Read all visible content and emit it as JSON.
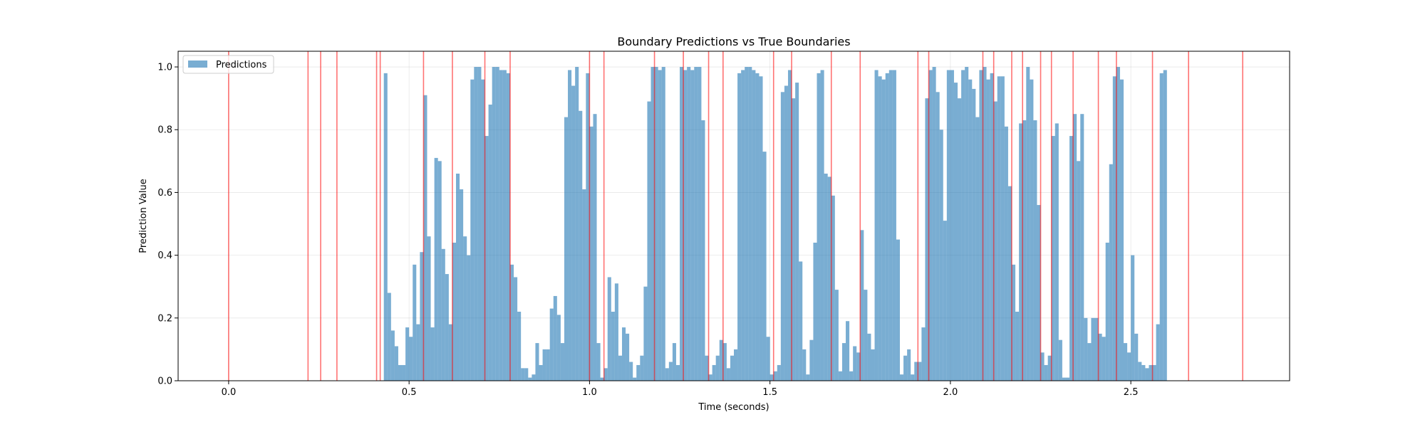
{
  "chart_data": {
    "type": "bar",
    "title": "Boundary Predictions vs True Boundaries",
    "xlabel": "Time (seconds)",
    "ylabel": "Prediction Value",
    "xlim": [
      -0.14,
      2.94
    ],
    "ylim": [
      0.0,
      1.05
    ],
    "xticks": [
      0.0,
      0.5,
      1.0,
      1.5,
      2.0,
      2.5
    ],
    "xtick_labels": [
      "0.0",
      "0.5",
      "1.0",
      "1.5",
      "2.0",
      "2.5"
    ],
    "yticks": [
      0.0,
      0.2,
      0.4,
      0.6,
      0.8,
      1.0
    ],
    "ytick_labels": [
      "0.0",
      "0.2",
      "0.4",
      "0.6",
      "0.8",
      "1.0"
    ],
    "grid": true,
    "legend": {
      "position": "upper-left",
      "entries": [
        "Predictions"
      ]
    },
    "series": [
      {
        "name": "Predictions",
        "color": "#1f77b4",
        "x_start": 0.43,
        "bin_width": 0.01,
        "values": [
          0.98,
          0.28,
          0.16,
          0.11,
          0.05,
          0.05,
          0.17,
          0.14,
          0.37,
          0.18,
          0.41,
          0.91,
          0.46,
          0.17,
          0.71,
          0.7,
          0.42,
          0.34,
          0.18,
          0.44,
          0.66,
          0.61,
          0.46,
          0.4,
          0.96,
          1.0,
          1.0,
          0.96,
          0.78,
          0.88,
          1.0,
          1.0,
          0.99,
          0.99,
          0.98,
          0.37,
          0.33,
          0.22,
          0.04,
          0.04,
          0.01,
          0.02,
          0.12,
          0.05,
          0.1,
          0.1,
          0.23,
          0.27,
          0.21,
          0.12,
          0.84,
          0.99,
          0.94,
          1.0,
          0.86,
          0.61,
          0.98,
          0.81,
          0.85,
          0.12,
          0.01,
          0.04,
          0.33,
          0.22,
          0.31,
          0.08,
          0.17,
          0.15,
          0.06,
          0.01,
          0.05,
          0.08,
          0.3,
          0.89,
          1.0,
          1.0,
          0.99,
          1.0,
          0.04,
          0.06,
          0.12,
          0.05,
          1.0,
          0.99,
          1.0,
          0.99,
          1.0,
          1.0,
          0.83,
          0.08,
          0.02,
          0.05,
          0.08,
          0.13,
          0.12,
          0.04,
          0.08,
          0.1,
          0.98,
          0.99,
          1.0,
          1.0,
          0.99,
          0.98,
          0.97,
          0.73,
          0.14,
          0.02,
          0.03,
          0.05,
          0.92,
          0.94,
          0.99,
          0.9,
          0.95,
          0.38,
          0.1,
          0.02,
          0.13,
          0.44,
          0.98,
          0.99,
          0.66,
          0.65,
          0.59,
          0.29,
          0.03,
          0.12,
          0.19,
          0.03,
          0.11,
          0.09,
          0.48,
          0.29,
          0.15,
          0.1,
          0.99,
          0.97,
          0.96,
          0.98,
          0.99,
          0.99,
          0.45,
          0.02,
          0.08,
          0.1,
          0.02,
          0.06,
          0.06,
          0.17,
          0.9,
          0.99,
          1.0,
          0.92,
          0.8,
          0.51,
          0.99,
          0.99,
          0.95,
          0.9,
          0.99,
          1.0,
          0.96,
          0.93,
          0.84,
          0.99,
          1.0,
          0.96,
          0.98,
          0.89,
          0.97,
          0.97,
          0.81,
          0.62,
          0.37,
          0.22,
          0.82,
          0.83,
          1.0,
          0.96,
          0.83,
          0.56,
          0.09,
          0.05,
          0.08,
          0.78,
          0.82,
          0.13,
          0.01,
          0.01,
          0.78,
          0.85,
          0.7,
          0.85,
          0.2,
          0.12,
          0.2,
          0.2,
          0.15,
          0.14,
          0.44,
          0.69,
          0.97,
          1.0,
          0.96,
          0.12,
          0.09,
          0.4,
          0.15,
          0.06,
          0.05,
          0.04,
          0.05,
          0.05,
          0.18,
          0.98,
          0.99
        ]
      }
    ],
    "true_boundaries": {
      "color": "#ff0000",
      "x": [
        0.0,
        0.22,
        0.255,
        0.3,
        0.41,
        0.42,
        0.54,
        0.62,
        0.71,
        0.78,
        1.0,
        1.04,
        1.18,
        1.26,
        1.33,
        1.37,
        1.51,
        1.56,
        1.67,
        1.75,
        1.91,
        1.94,
        2.09,
        2.12,
        2.17,
        2.2,
        2.25,
        2.28,
        2.34,
        2.41,
        2.46,
        2.56,
        2.66,
        2.81
      ]
    }
  }
}
